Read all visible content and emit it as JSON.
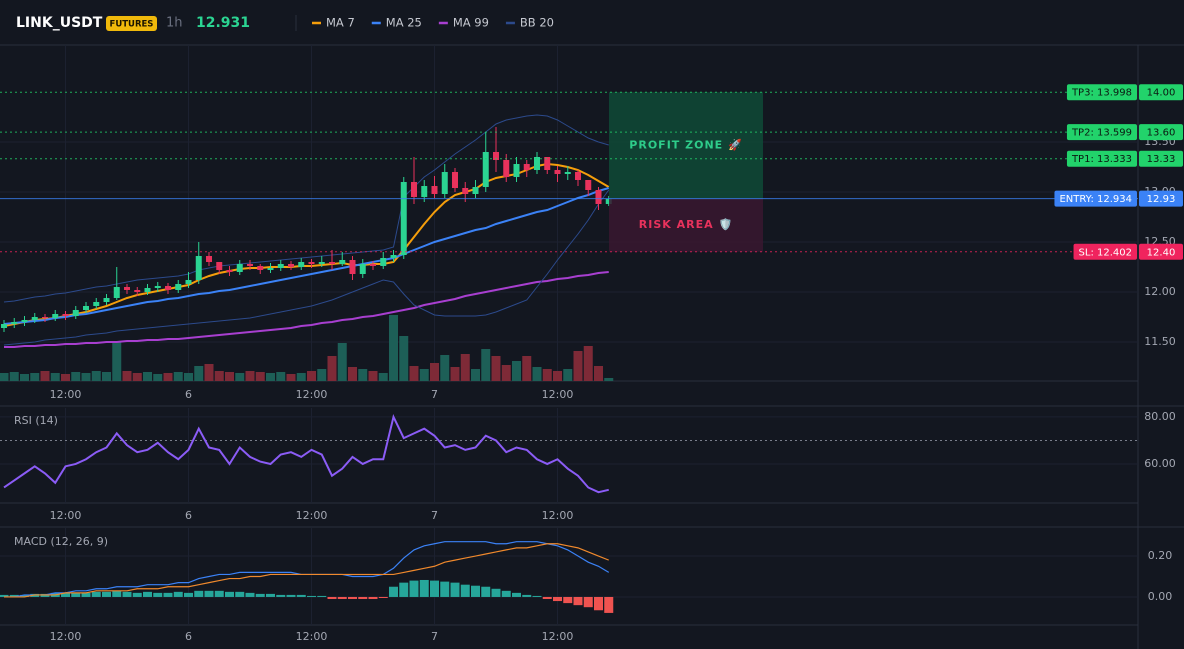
{
  "chart_data": [
    {
      "type": "candlestick",
      "title": "LINK_USDT",
      "badge": "FUTURES",
      "interval": "1h",
      "last_price": 12.931,
      "categories": [
        null,
        null,
        null,
        null,
        null,
        null,
        "12:00",
        null,
        null,
        null,
        null,
        null,
        null,
        null,
        null,
        null,
        null,
        null,
        "6",
        null,
        null,
        null,
        null,
        null,
        null,
        null,
        null,
        null,
        null,
        null,
        "12:00",
        null,
        null,
        null,
        null,
        null,
        null,
        null,
        null,
        null,
        null,
        null,
        "7",
        null,
        null,
        null,
        null,
        null,
        null,
        null,
        null,
        null,
        null,
        null,
        "12:00",
        null,
        null,
        null,
        null,
        null
      ],
      "open": [
        11.64,
        11.68,
        11.7,
        11.72,
        11.75,
        11.74,
        11.78,
        11.76,
        11.82,
        11.86,
        11.9,
        11.94,
        12.05,
        12.02,
        12.0,
        12.04,
        12.06,
        12.02,
        12.08,
        12.12,
        12.36,
        12.3,
        12.22,
        12.2,
        12.28,
        12.26,
        12.22,
        12.24,
        12.28,
        12.25,
        12.3,
        12.28,
        12.3,
        12.28,
        12.32,
        12.18,
        12.28,
        12.26,
        12.34,
        12.37,
        13.1,
        12.95,
        13.06,
        12.98,
        13.2,
        13.04,
        12.98,
        13.05,
        13.4,
        13.32,
        13.15,
        13.28,
        13.22,
        13.35,
        13.22,
        13.18,
        13.2,
        13.12,
        13.02,
        12.88
      ],
      "high": [
        11.72,
        11.74,
        11.76,
        11.79,
        11.78,
        11.82,
        11.81,
        11.86,
        11.9,
        11.94,
        11.98,
        12.25,
        12.08,
        12.05,
        12.08,
        12.1,
        12.09,
        12.12,
        12.2,
        12.5,
        12.4,
        12.28,
        12.26,
        12.32,
        12.32,
        12.28,
        12.29,
        12.32,
        12.31,
        12.34,
        12.33,
        12.36,
        12.42,
        12.4,
        12.36,
        12.33,
        12.31,
        12.4,
        12.42,
        13.15,
        13.35,
        13.12,
        13.16,
        13.28,
        13.24,
        13.1,
        13.12,
        13.6,
        13.65,
        13.38,
        13.35,
        13.32,
        13.4,
        13.34,
        13.26,
        13.26,
        13.22,
        13.1,
        13.05,
        12.96
      ],
      "low": [
        11.6,
        11.64,
        11.66,
        11.69,
        11.7,
        11.71,
        11.72,
        11.73,
        11.79,
        11.83,
        11.87,
        11.92,
        11.98,
        11.96,
        11.97,
        12.0,
        11.98,
        11.99,
        12.04,
        12.08,
        12.26,
        12.18,
        12.16,
        12.17,
        12.22,
        12.18,
        12.19,
        12.21,
        12.22,
        12.22,
        12.24,
        12.25,
        12.22,
        12.26,
        12.12,
        12.14,
        12.22,
        12.23,
        12.3,
        12.33,
        12.88,
        12.9,
        12.94,
        12.94,
        13.0,
        12.9,
        12.94,
        13.0,
        13.2,
        13.1,
        13.1,
        13.15,
        13.18,
        13.18,
        13.1,
        13.12,
        13.06,
        12.96,
        12.82,
        12.86
      ],
      "close": [
        11.68,
        11.7,
        11.72,
        11.75,
        11.74,
        11.78,
        11.76,
        11.82,
        11.86,
        11.9,
        11.94,
        12.05,
        12.02,
        12.0,
        12.04,
        12.06,
        12.02,
        12.08,
        12.12,
        12.36,
        12.3,
        12.22,
        12.2,
        12.28,
        12.26,
        12.22,
        12.24,
        12.28,
        12.25,
        12.3,
        12.28,
        12.3,
        12.28,
        12.32,
        12.18,
        12.28,
        12.26,
        12.34,
        12.37,
        13.1,
        12.95,
        13.06,
        12.98,
        13.2,
        13.04,
        12.98,
        13.05,
        13.4,
        13.32,
        13.15,
        13.28,
        13.22,
        13.35,
        13.22,
        13.18,
        13.2,
        13.12,
        13.02,
        12.88,
        12.931
      ],
      "up_color": "#2bd492",
      "down_color": "#e8325c",
      "series": [
        {
          "name": "MA 7",
          "color": "#f59e0b",
          "values": [
            11.66,
            11.68,
            11.7,
            11.72,
            11.73,
            11.74,
            11.76,
            11.78,
            11.8,
            11.83,
            11.86,
            11.9,
            11.94,
            11.97,
            11.99,
            12.01,
            12.03,
            12.05,
            12.07,
            12.12,
            12.16,
            12.19,
            12.21,
            12.23,
            12.24,
            12.24,
            12.25,
            12.25,
            12.25,
            12.26,
            12.26,
            12.27,
            12.28,
            12.29,
            12.27,
            12.27,
            12.28,
            12.28,
            12.3,
            12.42,
            12.55,
            12.68,
            12.8,
            12.9,
            12.97,
            13.0,
            13.03,
            13.1,
            13.14,
            13.16,
            13.18,
            13.22,
            13.26,
            13.28,
            13.27,
            13.25,
            13.22,
            13.17,
            13.11,
            13.05
          ]
        },
        {
          "name": "MA 25",
          "color": "#3b82f6",
          "values": [
            11.68,
            11.69,
            11.7,
            11.71,
            11.72,
            11.74,
            11.75,
            11.77,
            11.78,
            11.8,
            11.82,
            11.84,
            11.86,
            11.88,
            11.9,
            11.91,
            11.93,
            11.94,
            11.96,
            11.98,
            11.99,
            12.01,
            12.02,
            12.04,
            12.06,
            12.08,
            12.1,
            12.12,
            12.14,
            12.16,
            12.18,
            12.2,
            12.22,
            12.24,
            12.26,
            12.28,
            12.3,
            12.32,
            12.34,
            12.38,
            12.42,
            12.46,
            12.5,
            12.53,
            12.56,
            12.59,
            12.62,
            12.64,
            12.68,
            12.71,
            12.74,
            12.77,
            12.8,
            12.82,
            12.86,
            12.9,
            12.94,
            12.97,
            13.01,
            13.04
          ]
        },
        {
          "name": "MA 99",
          "color": "#a83fd0",
          "values": [
            11.45,
            11.45,
            11.46,
            11.46,
            11.47,
            11.47,
            11.48,
            11.48,
            11.49,
            11.49,
            11.5,
            11.5,
            11.51,
            11.51,
            11.52,
            11.52,
            11.53,
            11.53,
            11.54,
            11.55,
            11.56,
            11.57,
            11.58,
            11.59,
            11.6,
            11.61,
            11.62,
            11.63,
            11.64,
            11.66,
            11.67,
            11.69,
            11.7,
            11.72,
            11.73,
            11.75,
            11.76,
            11.78,
            11.8,
            11.82,
            11.84,
            11.87,
            11.89,
            11.91,
            11.93,
            11.96,
            11.98,
            12.0,
            12.02,
            12.04,
            12.06,
            12.08,
            12.1,
            12.11,
            12.13,
            12.14,
            12.16,
            12.17,
            12.19,
            12.2
          ]
        },
        {
          "name": "BB 20",
          "color": "#2c4a8c",
          "upper": [
            11.9,
            11.91,
            11.93,
            11.95,
            11.96,
            11.98,
            11.99,
            12.01,
            12.03,
            12.05,
            12.06,
            12.08,
            12.1,
            12.12,
            12.13,
            12.14,
            12.15,
            12.16,
            12.18,
            12.22,
            12.24,
            12.26,
            12.27,
            12.28,
            12.29,
            12.3,
            12.31,
            12.32,
            12.33,
            12.34,
            12.35,
            12.36,
            12.37,
            12.38,
            12.39,
            12.4,
            12.41,
            12.42,
            12.45,
            12.95,
            13.05,
            13.15,
            13.22,
            13.3,
            13.38,
            13.45,
            13.52,
            13.6,
            13.68,
            13.72,
            13.74,
            13.76,
            13.77,
            13.76,
            13.72,
            13.66,
            13.6,
            13.54,
            13.5,
            13.47
          ],
          "lower": [
            11.47,
            11.48,
            11.49,
            11.5,
            11.52,
            11.53,
            11.54,
            11.55,
            11.57,
            11.58,
            11.59,
            11.61,
            11.62,
            11.63,
            11.64,
            11.65,
            11.66,
            11.67,
            11.68,
            11.69,
            11.7,
            11.71,
            11.72,
            11.73,
            11.74,
            11.76,
            11.78,
            11.8,
            11.82,
            11.84,
            11.86,
            11.89,
            11.92,
            11.96,
            12.0,
            12.04,
            12.08,
            12.12,
            12.1,
            11.98,
            11.87,
            11.82,
            11.77,
            11.76,
            11.76,
            11.76,
            11.76,
            11.77,
            11.8,
            11.84,
            11.88,
            11.92,
            12.05,
            12.18,
            12.32,
            12.45,
            12.58,
            12.72,
            12.88,
            13.02
          ]
        }
      ],
      "levels": [
        {
          "label": "TP3: 13.998",
          "value": 13.998,
          "axis_label": "14.00",
          "color": "#22d36b",
          "text_color": "#0b1a12",
          "dash": true
        },
        {
          "label": "TP2: 13.599",
          "value": 13.599,
          "axis_label": "13.60",
          "color": "#22d36b",
          "text_color": "#0b1a12",
          "dash": true
        },
        {
          "label": "TP1: 13.333",
          "value": 13.333,
          "axis_label": "13.33",
          "color": "#22d36b",
          "text_color": "#0b1a12",
          "dash": true
        },
        {
          "label": "ENTRY: 12.934",
          "value": 12.934,
          "axis_label": "12.93",
          "color": "#3b82f6",
          "text_color": "#ffffff",
          "dash": false
        },
        {
          "label": "SL: 12.402",
          "value": 12.402,
          "axis_label": "12.40",
          "color": "#f0245e",
          "text_color": "#ffffff",
          "dash": true
        }
      ],
      "zones": [
        {
          "label": "PROFIT ZONE 🚀",
          "color": "#0f4a37",
          "text_color": "#2ecc8a"
        },
        {
          "label": "RISK AREA 🛡️",
          "color": "#3a1730",
          "text_color": "#e8325c"
        }
      ],
      "ylim": [
        11.11,
        14.47
      ],
      "yticks": [
        {
          "value": 11.5,
          "label": "11.50"
        },
        {
          "value": 12,
          "label": "12.00"
        },
        {
          "value": 12.5,
          "label": "12.50"
        },
        {
          "value": 13,
          "label": "13.00"
        },
        {
          "value": 13.5,
          "label": "13.50"
        }
      ],
      "grid": true
    },
    {
      "type": "bar",
      "values": [
        8,
        9,
        7,
        8,
        10,
        8,
        7,
        9,
        8,
        10,
        9,
        40,
        10,
        8,
        9,
        7,
        8,
        9,
        8,
        15,
        17,
        10,
        9,
        8,
        10,
        9,
        8,
        9,
        7,
        8,
        10,
        12,
        25,
        38,
        14,
        12,
        10,
        8,
        66,
        45,
        15,
        12,
        18,
        26,
        14,
        27,
        12,
        32,
        25,
        16,
        20,
        25,
        14,
        12,
        10,
        12,
        30,
        35,
        15,
        3
      ],
      "ylim": [
        0,
        100
      ],
      "up_color": "#1d5f57",
      "down_color": "#7e2a37"
    },
    {
      "type": "line",
      "title": "RSI (14)",
      "color": "#8b5cf6",
      "values": [
        50,
        53,
        56,
        59,
        56,
        52,
        59,
        60,
        62,
        65,
        67,
        73,
        68,
        65,
        66,
        69,
        65,
        62,
        66,
        75,
        67,
        66,
        60,
        67,
        63,
        61,
        60,
        64,
        65,
        63,
        66,
        64,
        55,
        58,
        63,
        60,
        62,
        62,
        80,
        71,
        73,
        75,
        72,
        67,
        68,
        66,
        67,
        72,
        70,
        65,
        67,
        66,
        62,
        60,
        62,
        58,
        55,
        50,
        48,
        49
      ],
      "ylim": [
        43.4,
        83.8
      ],
      "yticks": [
        {
          "value": 60,
          "label": "60.00"
        },
        {
          "value": 80,
          "label": "80.00"
        }
      ],
      "overbought": 70
    },
    {
      "type": "macd",
      "title": "MACD (12, 26, 9)",
      "macd_color": "#3b82f6",
      "signal_color": "#f0892c",
      "up_color": "#26a69a",
      "down_color": "#ef5350",
      "macd": [
        0.0,
        0.0,
        0.01,
        0.01,
        0.01,
        0.02,
        0.02,
        0.03,
        0.03,
        0.04,
        0.04,
        0.05,
        0.05,
        0.05,
        0.06,
        0.06,
        0.06,
        0.07,
        0.07,
        0.09,
        0.1,
        0.11,
        0.11,
        0.12,
        0.12,
        0.12,
        0.12,
        0.12,
        0.12,
        0.11,
        0.11,
        0.11,
        0.11,
        0.11,
        0.1,
        0.1,
        0.1,
        0.11,
        0.14,
        0.19,
        0.23,
        0.25,
        0.26,
        0.27,
        0.27,
        0.27,
        0.27,
        0.27,
        0.26,
        0.26,
        0.27,
        0.27,
        0.27,
        0.26,
        0.25,
        0.23,
        0.2,
        0.17,
        0.15,
        0.12
      ],
      "signal": [
        0.0,
        0.0,
        0.0,
        0.01,
        0.01,
        0.01,
        0.02,
        0.02,
        0.02,
        0.03,
        0.03,
        0.03,
        0.03,
        0.04,
        0.04,
        0.04,
        0.05,
        0.05,
        0.05,
        0.06,
        0.07,
        0.08,
        0.09,
        0.09,
        0.1,
        0.1,
        0.11,
        0.11,
        0.11,
        0.11,
        0.11,
        0.11,
        0.11,
        0.11,
        0.11,
        0.11,
        0.11,
        0.11,
        0.11,
        0.12,
        0.13,
        0.14,
        0.15,
        0.17,
        0.18,
        0.19,
        0.2,
        0.21,
        0.22,
        0.23,
        0.24,
        0.24,
        0.25,
        0.26,
        0.26,
        0.25,
        0.24,
        0.22,
        0.2,
        0.18
      ],
      "histogram": [
        0.01,
        0.01,
        0.01,
        0.015,
        0.015,
        0.02,
        0.02,
        0.02,
        0.02,
        0.025,
        0.025,
        0.03,
        0.025,
        0.02,
        0.025,
        0.02,
        0.02,
        0.025,
        0.02,
        0.03,
        0.03,
        0.03,
        0.025,
        0.025,
        0.02,
        0.015,
        0.015,
        0.01,
        0.01,
        0.01,
        0.005,
        0.005,
        -0.01,
        -0.01,
        -0.01,
        -0.01,
        -0.01,
        -0.005,
        0.05,
        0.07,
        0.08,
        0.083,
        0.08,
        0.075,
        0.07,
        0.06,
        0.055,
        0.05,
        0.04,
        0.03,
        0.02,
        0.01,
        0.005,
        -0.01,
        -0.02,
        -0.03,
        -0.04,
        -0.05,
        -0.065,
        -0.078
      ],
      "ylim": [
        -0.137,
        0.337
      ],
      "yticks": [
        {
          "value": 0,
          "label": "0.00"
        },
        {
          "value": 0.2,
          "label": "0.20"
        }
      ]
    }
  ]
}
